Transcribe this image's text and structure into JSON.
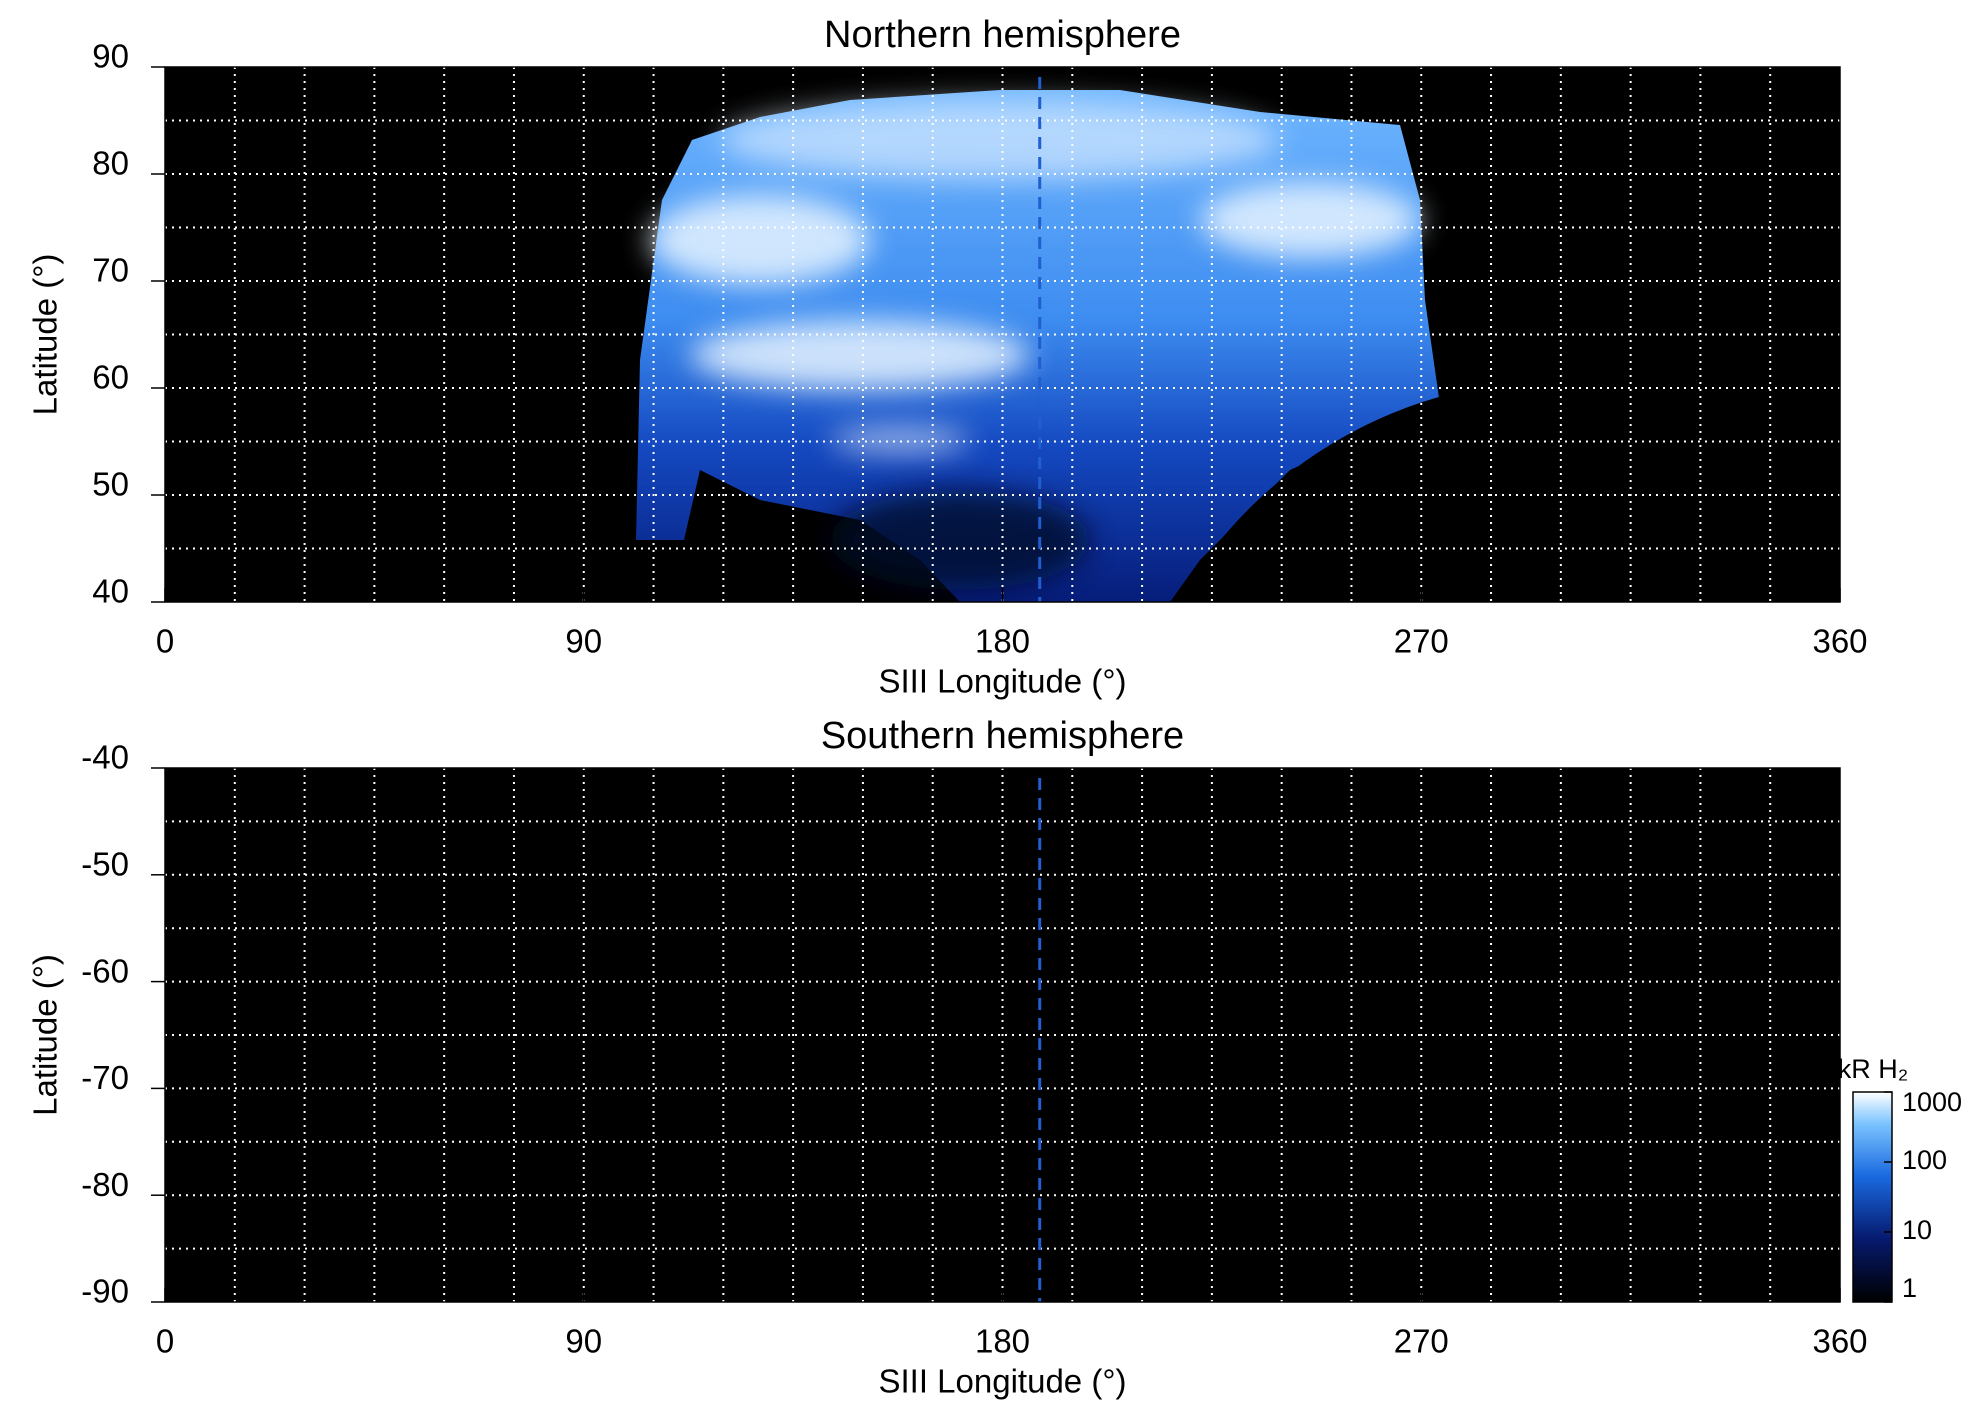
{
  "chart_data": [
    {
      "type": "heatmap",
      "title": "Northern hemisphere",
      "x_label": "SIII Longitude (°)",
      "y_label": "Latitude (°)",
      "xlim": [
        0,
        360
      ],
      "xticks": [
        0,
        90,
        180,
        270,
        360
      ],
      "ylim": [
        40,
        90
      ],
      "yticks": [
        40,
        50,
        60,
        70,
        80,
        90
      ],
      "grid": true,
      "xgrid": [
        15,
        30,
        45,
        60,
        75,
        90,
        105,
        120,
        135,
        150,
        165,
        180,
        195,
        210,
        225,
        240,
        255,
        270,
        285,
        300,
        315,
        330,
        345
      ],
      "ygrid": [
        45,
        50,
        55,
        60,
        65,
        70,
        75,
        80,
        85
      ],
      "vline": 188,
      "vline_color": "#1f5fd0",
      "background": "#000000"
    },
    {
      "type": "heatmap",
      "title": "Southern hemisphere",
      "x_label": "SIII Longitude (°)",
      "y_label": "Latitude (°)",
      "xlim": [
        0,
        360
      ],
      "xticks": [
        0,
        90,
        180,
        270,
        360
      ],
      "ylim": [
        -90,
        -40
      ],
      "yticks": [
        -90,
        -80,
        -70,
        -60,
        -50,
        -40
      ],
      "grid": true,
      "xgrid": [
        15,
        30,
        45,
        60,
        75,
        90,
        105,
        120,
        135,
        150,
        165,
        180,
        195,
        210,
        225,
        240,
        255,
        270,
        285,
        300,
        315,
        330,
        345
      ],
      "ygrid": [
        -85,
        -80,
        -75,
        -70,
        -65,
        -60,
        -55,
        -50,
        -45
      ],
      "vline": 188,
      "vline_color": "#1f5fd0",
      "background": "#000000",
      "colorbar": {
        "label": "kR H₂",
        "lim": [
          1,
          1000
        ],
        "ticks": [
          1,
          10,
          100,
          1000
        ],
        "log": true
      }
    }
  ]
}
